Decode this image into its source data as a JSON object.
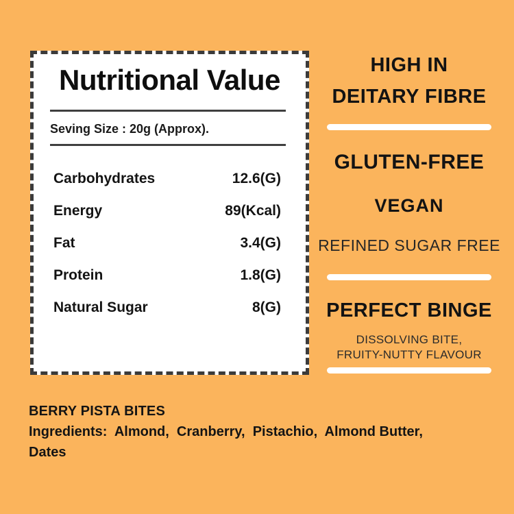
{
  "colors": {
    "background": "#FBB45C",
    "card_background": "#FFFFFF",
    "card_border": "#3B3B3B",
    "text": "#141414",
    "divider_bar": "#FFFFFF",
    "rule_dark": "#3F3F3F"
  },
  "nutrition_card": {
    "title": "Nutritional Value",
    "serving_size": "Seving Size : 20g (Approx).",
    "rows": [
      {
        "label": "Carbohydrates",
        "value": "12.6(G)"
      },
      {
        "label": "Energy",
        "value": "89(Kcal)"
      },
      {
        "label": "Fat",
        "value": "3.4(G)"
      },
      {
        "label": "Protein",
        "value": "1.8(G)"
      },
      {
        "label": "Natural Sugar",
        "value": "8(G)"
      }
    ]
  },
  "highlights": {
    "fibre_line1": "HIGH IN",
    "fibre_line2": "DEITARY FIBRE",
    "gluten_free": "GLUTEN-FREE",
    "vegan": "VEGAN",
    "refined_sugar_free": "REFINED SUGAR FREE",
    "perfect_binge": "PERFECT BINGE",
    "binge_sub_line1": "DISSOLVING BITE,",
    "binge_sub_line2": "FRUITY-NUTTY FLAVOUR"
  },
  "footer": {
    "product_name": "BERRY PISTA BITES",
    "ingredients_line1": "Ingredients:  Almond,  Cranberry,  Pistachio,  Almond Butter,",
    "ingredients_line2": "Dates"
  }
}
